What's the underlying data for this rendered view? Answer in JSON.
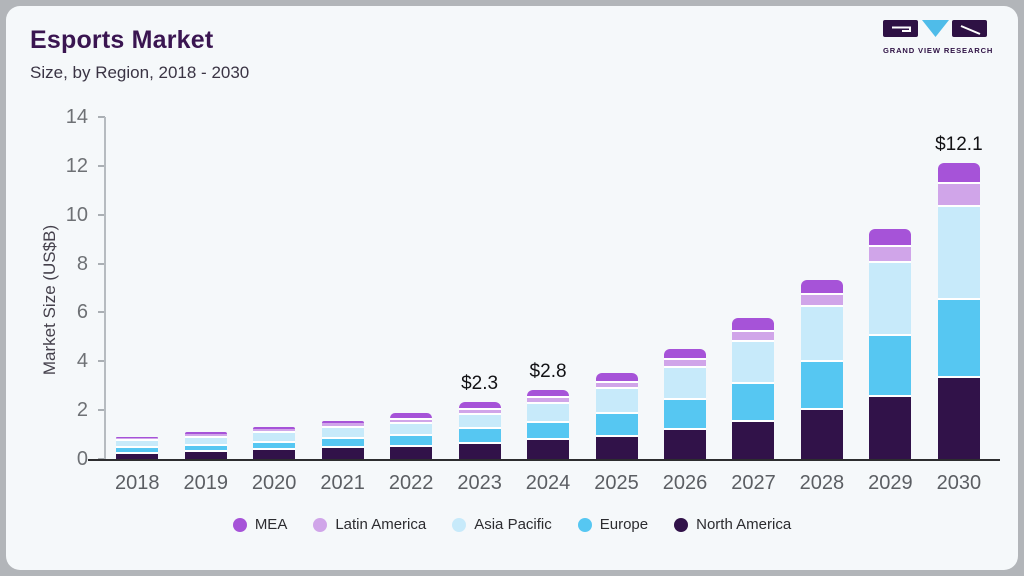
{
  "header": {
    "title": "Esports Market",
    "subtitle": "Size, by Region, 2018 - 2030"
  },
  "logo": {
    "brand": "GRAND VIEW RESEARCH"
  },
  "palette": {
    "brand_purple": "#3a1551",
    "card_background": "#f5f8fa",
    "axis_line": "#2d2d2f"
  },
  "chart_data": {
    "type": "bar",
    "stacked": true,
    "title": "Esports Market Size, by Region, 2018 - 2030",
    "xlabel": "",
    "ylabel": "Market Size (US$B)",
    "ylim": [
      0,
      14
    ],
    "yticks": [
      0,
      2,
      4,
      6,
      8,
      10,
      12,
      14
    ],
    "grid": false,
    "legend_position": "bottom",
    "categories": [
      "2018",
      "2019",
      "2020",
      "2021",
      "2022",
      "2023",
      "2024",
      "2025",
      "2026",
      "2027",
      "2028",
      "2029",
      "2030"
    ],
    "series": [
      {
        "name": "North America",
        "color": "#311249",
        "values": [
          0.3,
          0.36,
          0.44,
          0.52,
          0.59,
          0.71,
          0.85,
          1.0,
          1.26,
          1.61,
          2.08,
          2.62,
          3.4
        ]
      },
      {
        "name": "Europe",
        "color": "#56c7f2",
        "values": [
          0.23,
          0.26,
          0.31,
          0.37,
          0.44,
          0.59,
          0.72,
          0.94,
          1.23,
          1.53,
          1.99,
          2.5,
          3.2
        ]
      },
      {
        "name": "Asia Pacific",
        "color": "#c7eafa",
        "values": [
          0.31,
          0.34,
          0.41,
          0.47,
          0.48,
          0.59,
          0.78,
          1.0,
          1.33,
          1.73,
          2.24,
          3.0,
          3.8
        ]
      },
      {
        "name": "Latin America",
        "color": "#d0a5e9",
        "values": [
          0.04,
          0.08,
          0.09,
          0.1,
          0.18,
          0.19,
          0.22,
          0.27,
          0.3,
          0.41,
          0.49,
          0.64,
          0.95
        ]
      },
      {
        "name": "MEA",
        "color": "#a653d8",
        "values": [
          0.03,
          0.05,
          0.07,
          0.1,
          0.19,
          0.25,
          0.27,
          0.3,
          0.38,
          0.48,
          0.53,
          0.65,
          0.78
        ]
      }
    ],
    "totals": [
      0.91,
      1.09,
      1.32,
      1.56,
      1.88,
      2.33,
      2.84,
      3.51,
      4.5,
      5.76,
      7.33,
      9.41,
      12.13
    ],
    "legend_order": [
      "MEA",
      "Latin America",
      "Asia Pacific",
      "Europe",
      "North America"
    ],
    "value_labels": {
      "2023": "$2.3",
      "2024": "$2.8",
      "2030": "$12.1"
    }
  }
}
